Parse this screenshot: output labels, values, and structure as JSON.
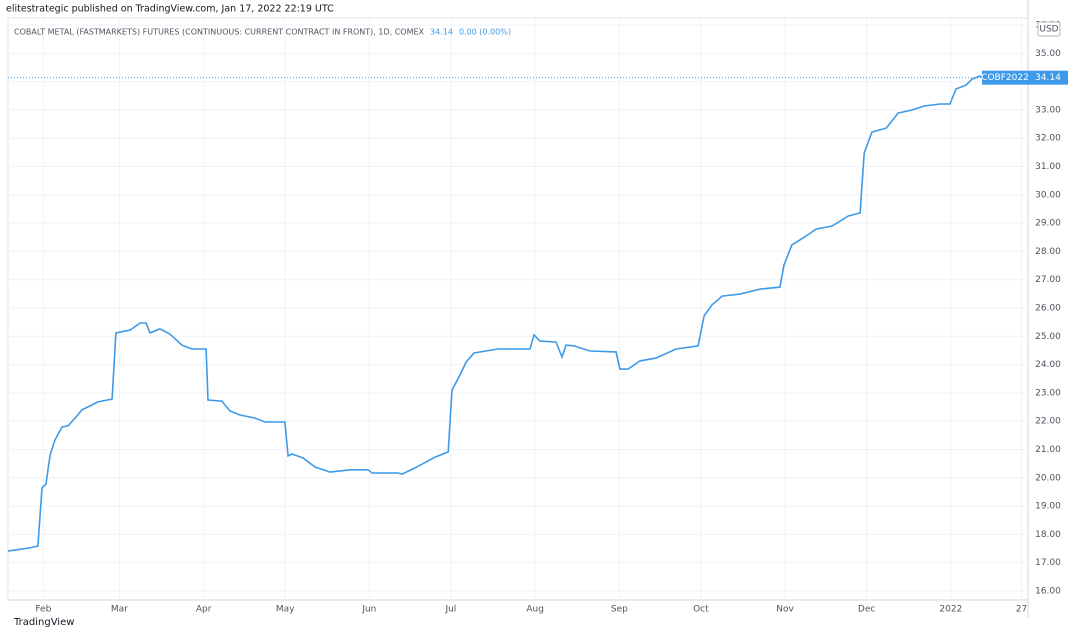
{
  "chart_data": {
    "type": "line",
    "header": "elitestrategic published on TradingView.com, Jan 17, 2022 22:19 UTC",
    "legend": {
      "name": "COBALT METAL (FASTMARKETS) FUTURES (CONTINUOUS: CURRENT CONTRACT IN FRONT), 1D, COMEX",
      "last": 34.14,
      "change": "0.00 (0.00%)"
    },
    "currency": "USD",
    "price_label": {
      "name": "COBF2022",
      "value": 34.14
    },
    "brand": "TradingView",
    "series": [
      {
        "name": "COBF2022",
        "color": "#3d9ae8",
        "x": [
          0,
          8,
          11,
          12.5,
          14,
          15.5,
          17.3,
          19.9,
          22,
          24.7,
          27.2,
          30.2,
          33.1,
          38.3,
          39.7,
          44.9,
          48.6,
          50.8,
          52.3,
          55.9,
          59.6,
          64,
          67.7,
          72.9,
          73.6,
          78.7,
          81.7,
          85.4,
          90.9,
          94.6,
          101.9,
          103.1,
          104.5,
          108.6,
          113,
          118.5,
          125.9,
          132.5,
          134,
          143.5,
          145,
          149.8,
          157.2,
          162,
          163.4,
          166.3,
          168.6,
          171.5,
          175.9,
          180.3,
          192.1,
          193.6,
          195.8,
          201.7,
          203.9,
          205.4,
          208.3,
          214.2,
          223.8,
          225.2,
          228.2,
          232.6,
          238.5,
          245.9,
          254,
          256.2,
          259.1,
          262.8,
          269.4,
          276.8,
          284.1,
          285.6,
          288.5,
          293.7,
          297.4,
          303.3,
          309.2,
          313.6,
          315.1,
          318,
          323.2,
          327.6,
          332.7,
          337.2,
          343,
          346.7,
          348.9,
          352.6,
          354.8,
          357.7,
          358.8
        ],
        "values": [
          17.41,
          17.52,
          17.59,
          19.64,
          19.78,
          20.81,
          21.34,
          21.8,
          21.83,
          22.11,
          22.4,
          22.54,
          22.68,
          22.78,
          25.12,
          25.22,
          25.47,
          25.47,
          25.12,
          25.26,
          25.08,
          24.69,
          24.55,
          24.55,
          22.75,
          22.71,
          22.36,
          22.22,
          22.11,
          21.97,
          21.97,
          20.77,
          20.84,
          20.7,
          20.38,
          20.2,
          20.28,
          20.28,
          20.17,
          20.17,
          20.13,
          20.35,
          20.73,
          20.91,
          23.1,
          23.63,
          24.09,
          24.41,
          24.48,
          24.55,
          24.55,
          25.05,
          24.83,
          24.8,
          24.27,
          24.69,
          24.66,
          24.48,
          24.45,
          23.84,
          23.84,
          24.13,
          24.23,
          24.55,
          24.66,
          25.72,
          26.11,
          26.42,
          26.49,
          26.67,
          26.74,
          27.52,
          28.23,
          28.54,
          28.79,
          28.9,
          29.25,
          29.36,
          31.48,
          32.22,
          32.36,
          32.89,
          33.0,
          33.14,
          33.21,
          33.21,
          33.74,
          33.88,
          34.09,
          34.2,
          34.14
        ]
      }
    ],
    "xlim": [
      0,
      375.4
    ],
    "xticks": [
      {
        "value": 13,
        "label": "Feb"
      },
      {
        "value": 41,
        "label": "Mar"
      },
      {
        "value": 72,
        "label": "Apr"
      },
      {
        "value": 102,
        "label": "May"
      },
      {
        "value": 133,
        "label": "Jun"
      },
      {
        "value": 163,
        "label": "Jul"
      },
      {
        "value": 194,
        "label": "Aug"
      },
      {
        "value": 225,
        "label": "Sep"
      },
      {
        "value": 255,
        "label": "Oct"
      },
      {
        "value": 286,
        "label": "Nov"
      },
      {
        "value": 316,
        "label": "Dec"
      },
      {
        "value": 347,
        "label": "2022"
      },
      {
        "value": 373,
        "label": "27"
      }
    ],
    "ylim": [
      15.68,
      36.25
    ],
    "yticks": [
      {
        "value": 16,
        "label": "16.00"
      },
      {
        "value": 17,
        "label": "17.00"
      },
      {
        "value": 18,
        "label": "18.00"
      },
      {
        "value": 19,
        "label": "19.00"
      },
      {
        "value": 20,
        "label": "20.00"
      },
      {
        "value": 21,
        "label": "21.00"
      },
      {
        "value": 22,
        "label": "22.00"
      },
      {
        "value": 23,
        "label": "23.00"
      },
      {
        "value": 24,
        "label": "24.00"
      },
      {
        "value": 25,
        "label": "25.00"
      },
      {
        "value": 26,
        "label": "26.00"
      },
      {
        "value": 27,
        "label": "27.00"
      },
      {
        "value": 28,
        "label": "28.00"
      },
      {
        "value": 29,
        "label": "29.00"
      },
      {
        "value": 30,
        "label": "30.00"
      },
      {
        "value": 31,
        "label": "31.00"
      },
      {
        "value": 32,
        "label": "32.00"
      },
      {
        "value": 33,
        "label": "33.00"
      },
      {
        "value": 34,
        "label": "34.00"
      },
      {
        "value": 35,
        "label": "35.00"
      },
      {
        "value": 36,
        "label": "36.00"
      }
    ],
    "grid": true
  }
}
